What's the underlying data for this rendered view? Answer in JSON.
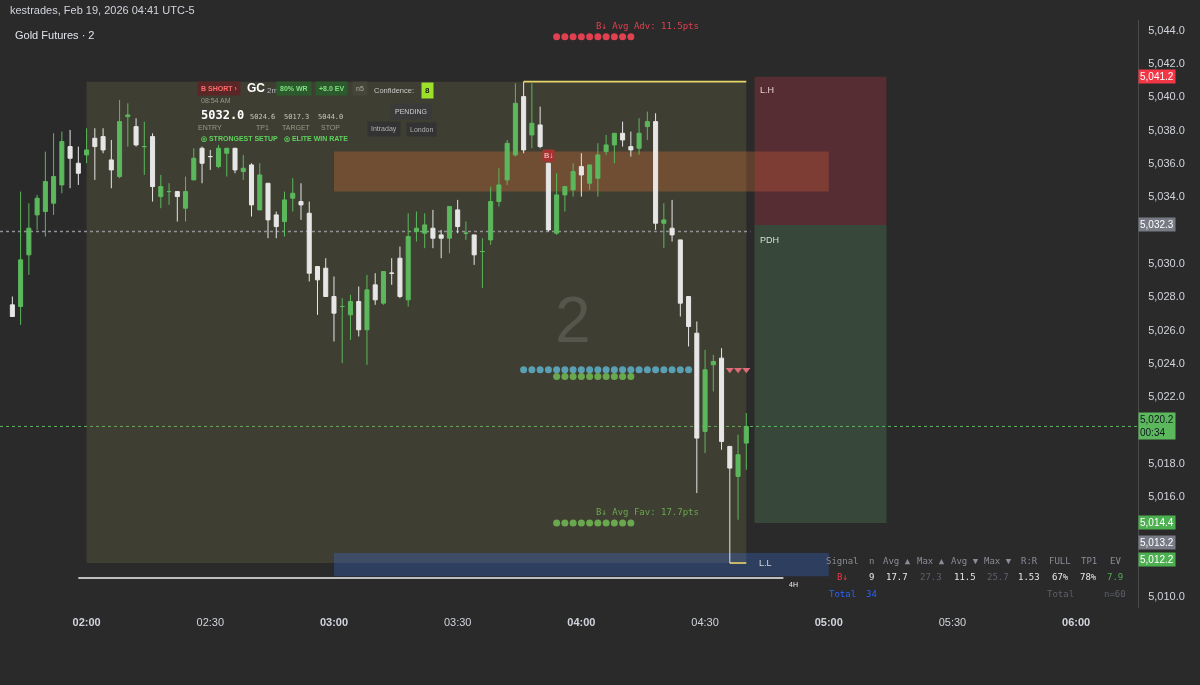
{
  "chart_data": {
    "type": "candlestick",
    "title": "Gold Futures · 2",
    "x": [
      "2026-02-19T01:42",
      "2026-02-19T01:44",
      "2026-02-19T01:46",
      "2026-02-19T01:48",
      "2026-02-19T01:50",
      "2026-02-19T01:52",
      "2026-02-19T01:54",
      "2026-02-19T01:56",
      "2026-02-19T01:58",
      "2026-02-19T02:00",
      "2026-02-19T02:02",
      "2026-02-19T02:04",
      "2026-02-19T02:06",
      "2026-02-19T02:08",
      "2026-02-19T02:10",
      "2026-02-19T02:12",
      "2026-02-19T02:14",
      "2026-02-19T02:16",
      "2026-02-19T02:18",
      "2026-02-19T02:20",
      "2026-02-19T02:22",
      "2026-02-19T02:24",
      "2026-02-19T02:26",
      "2026-02-19T02:28",
      "2026-02-19T02:30",
      "2026-02-19T02:32",
      "2026-02-19T02:34",
      "2026-02-19T02:36",
      "2026-02-19T02:38",
      "2026-02-19T02:40",
      "2026-02-19T02:42",
      "2026-02-19T02:44",
      "2026-02-19T02:46",
      "2026-02-19T02:48",
      "2026-02-19T02:50",
      "2026-02-19T02:52",
      "2026-02-19T02:54",
      "2026-02-19T02:56",
      "2026-02-19T02:58",
      "2026-02-19T03:00",
      "2026-02-19T03:02",
      "2026-02-19T03:04",
      "2026-02-19T03:06",
      "2026-02-19T03:08",
      "2026-02-19T03:10",
      "2026-02-19T03:12",
      "2026-02-19T03:14",
      "2026-02-19T03:16",
      "2026-02-19T03:18",
      "2026-02-19T03:20",
      "2026-02-19T03:22",
      "2026-02-19T03:24",
      "2026-02-19T03:26",
      "2026-02-19T03:28",
      "2026-02-19T03:30",
      "2026-02-19T03:32",
      "2026-02-19T03:34",
      "2026-02-19T03:36",
      "2026-02-19T03:38",
      "2026-02-19T03:40",
      "2026-02-19T03:42",
      "2026-02-19T03:44",
      "2026-02-19T03:46",
      "2026-02-19T03:48",
      "2026-02-19T03:50",
      "2026-02-19T03:52",
      "2026-02-19T03:54",
      "2026-02-19T03:56",
      "2026-02-19T03:58",
      "2026-02-19T04:00",
      "2026-02-19T04:02",
      "2026-02-19T04:04",
      "2026-02-19T04:06",
      "2026-02-19T04:08",
      "2026-02-19T04:10",
      "2026-02-19T04:12",
      "2026-02-19T04:14",
      "2026-02-19T04:16",
      "2026-02-19T04:18",
      "2026-02-19T04:20",
      "2026-02-19T04:22",
      "2026-02-19T04:24",
      "2026-02-19T04:26",
      "2026-02-19T04:28",
      "2026-02-19T04:30",
      "2026-02-19T04:32",
      "2026-02-19T04:34",
      "2026-02-19T04:36",
      "2026-02-19T04:38",
      "2026-02-19T04:40"
    ],
    "ohlc": [
      [
        5027.5,
        5028.0,
        5026.8,
        5026.8
      ],
      [
        5027.4,
        5034.3,
        5026.3,
        5030.2
      ],
      [
        5030.5,
        5033.6,
        5029.3,
        5032.1
      ],
      [
        5032.9,
        5034.1,
        5032.0,
        5033.9
      ],
      [
        5033.1,
        5036.7,
        5031.6,
        5034.9
      ],
      [
        5033.6,
        5037.8,
        5032.9,
        5035.2
      ],
      [
        5034.7,
        5037.9,
        5034.2,
        5037.3
      ],
      [
        5037.0,
        5038.0,
        5034.5,
        5036.3
      ],
      [
        5036.0,
        5037.0,
        5034.7,
        5035.4
      ],
      [
        5036.5,
        5038.1,
        5036.0,
        5036.8
      ],
      [
        5037.5,
        5038.1,
        5035.0,
        5037.0
      ],
      [
        5037.6,
        5038.1,
        5036.6,
        5036.8
      ],
      [
        5036.2,
        5037.4,
        5034.5,
        5035.6
      ],
      [
        5035.2,
        5039.8,
        5035.1,
        5038.5
      ],
      [
        5038.8,
        5039.6,
        5037.0,
        5038.9
      ],
      [
        5038.2,
        5038.7,
        5037.0,
        5037.1
      ],
      [
        5037.0,
        5038.5,
        5035.3,
        5037.0
      ],
      [
        5037.6,
        5037.8,
        5033.7,
        5034.6
      ],
      [
        5034.0,
        5035.3,
        5033.3,
        5034.6
      ],
      [
        5034.3,
        5034.8,
        5033.5,
        5034.3
      ],
      [
        5034.3,
        5034.3,
        5032.5,
        5034.0
      ],
      [
        5033.3,
        5035.2,
        5032.5,
        5034.3
      ],
      [
        5035.0,
        5036.9,
        5035.0,
        5036.3
      ],
      [
        5036.9,
        5037.0,
        5034.8,
        5036.0
      ],
      [
        5036.4,
        5036.8,
        5035.6,
        5036.4
      ],
      [
        5035.8,
        5037.1,
        5035.7,
        5036.9
      ],
      [
        5036.6,
        5036.9,
        5035.2,
        5036.9
      ],
      [
        5036.9,
        5036.9,
        5035.4,
        5035.6
      ],
      [
        5035.5,
        5036.5,
        5035.0,
        5035.7
      ],
      [
        5035.9,
        5036.0,
        5032.8,
        5033.5
      ],
      [
        5033.2,
        5036.0,
        5033.2,
        5035.3
      ],
      [
        5034.8,
        5034.8,
        5031.5,
        5032.6
      ],
      [
        5032.9,
        5033.1,
        5031.5,
        5032.2
      ],
      [
        5032.5,
        5034.3,
        5031.6,
        5033.8
      ],
      [
        5033.9,
        5035.1,
        5033.1,
        5034.2
      ],
      [
        5033.7,
        5034.8,
        5032.6,
        5033.5
      ],
      [
        5033.0,
        5033.7,
        5028.9,
        5029.4
      ],
      [
        5029.8,
        5029.8,
        5026.9,
        5029.0
      ],
      [
        5029.7,
        5030.3,
        5028.0,
        5028.0
      ],
      [
        5028.0,
        5029.2,
        5025.3,
        5027.0
      ],
      [
        5027.4,
        5027.9,
        5024.0,
        5027.4
      ],
      [
        5026.9,
        5028.1,
        5025.4,
        5027.7
      ],
      [
        5027.7,
        5028.6,
        5025.6,
        5026.0
      ],
      [
        5026.0,
        5029.3,
        5023.9,
        5028.4
      ],
      [
        5028.7,
        5029.4,
        5027.5,
        5027.8
      ],
      [
        5027.6,
        5029.5,
        5027.5,
        5029.5
      ],
      [
        5029.4,
        5030.3,
        5028.7,
        5029.4
      ],
      [
        5030.3,
        5031.0,
        5027.9,
        5028.0
      ],
      [
        5027.8,
        5033.0,
        5027.4,
        5031.6
      ],
      [
        5031.9,
        5033.1,
        5031.3,
        5032.1
      ],
      [
        5031.8,
        5033.0,
        5030.9,
        5032.3
      ],
      [
        5032.1,
        5033.2,
        5030.9,
        5031.5
      ],
      [
        5031.7,
        5032.0,
        5030.3,
        5031.5
      ],
      [
        5031.5,
        5033.4,
        5030.6,
        5033.4
      ],
      [
        5033.2,
        5033.8,
        5031.8,
        5032.2
      ],
      [
        5031.8,
        5032.5,
        5031.4,
        5031.8
      ],
      [
        5031.7,
        5031.7,
        5029.9,
        5030.5
      ],
      [
        5030.7,
        5031.5,
        5028.5,
        5030.7
      ],
      [
        5031.4,
        5034.6,
        5031.1,
        5033.7
      ],
      [
        5033.7,
        5035.7,
        5033.4,
        5034.7
      ],
      [
        5035.0,
        5037.4,
        5034.7,
        5037.2
      ],
      [
        5036.5,
        5040.8,
        5036.4,
        5039.6
      ],
      [
        5040.0,
        5040.9,
        5036.6,
        5036.8
      ],
      [
        5037.7,
        5040.8,
        5036.9,
        5038.4
      ],
      [
        5038.3,
        5039.4,
        5036.9,
        5037.0
      ],
      [
        5036.0,
        5036.0,
        5031.9,
        5032.0
      ],
      [
        5031.8,
        5035.4,
        5031.7,
        5034.1
      ],
      [
        5034.1,
        5034.6,
        5033.1,
        5034.6
      ],
      [
        5034.4,
        5036.0,
        5034.0,
        5035.5
      ],
      [
        5035.8,
        5036.6,
        5034.0,
        5035.3
      ],
      [
        5034.8,
        5035.9,
        5034.4,
        5035.9
      ],
      [
        5035.1,
        5037.2,
        5034.0,
        5036.5
      ],
      [
        5036.7,
        5037.7,
        5036.5,
        5037.1
      ],
      [
        5037.1,
        5037.8,
        5036.0,
        5037.8
      ],
      [
        5037.8,
        5038.5,
        5037.0,
        5037.4
      ],
      [
        5037.0,
        5037.9,
        5036.4,
        5036.8
      ],
      [
        5036.9,
        5038.7,
        5036.5,
        5037.8
      ],
      [
        5038.2,
        5039.1,
        5037.4,
        5038.5
      ],
      [
        5038.5,
        5039.0,
        5032.0,
        5032.4
      ],
      [
        5032.4,
        5033.6,
        5030.9,
        5032.6
      ],
      [
        5032.1,
        5033.8,
        5031.3,
        5031.7
      ],
      [
        5031.4,
        5031.4,
        5026.8,
        5027.6
      ],
      [
        5028.0,
        5028.0,
        5025.0,
        5026.2
      ],
      [
        5025.8,
        5026.5,
        5016.2,
        5019.5
      ],
      [
        5019.9,
        5024.8,
        5018.6,
        5023.6
      ],
      [
        5023.9,
        5024.5,
        5022.3,
        5024.1
      ],
      [
        5024.3,
        5024.9,
        5018.8,
        5019.3
      ],
      [
        5019.0,
        5019.0,
        5012.0,
        5017.7
      ],
      [
        5017.2,
        5019.7,
        5014.6,
        5018.5
      ],
      [
        5019.2,
        5021.0,
        5017.6,
        5020.2
      ]
    ],
    "colors": [
      "#e6e6e6",
      "#5cb85c",
      "#5cb85c",
      "#5cb85c",
      "#5cb85c",
      "#5cb85c",
      "#5cb85c",
      "#e6e6e6",
      "#e6e6e6",
      "#5cb85c",
      "#e6e6e6",
      "#e6e6e6",
      "#e6e6e6",
      "#5cb85c",
      "#5cb85c",
      "#e6e6e6",
      "#5cb85c",
      "#e6e6e6",
      "#5cb85c",
      "#5cb85c",
      "#e6e6e6",
      "#5cb85c",
      "#5cb85c",
      "#e6e6e6",
      "#e6e6e6",
      "#5cb85c",
      "#5cb85c",
      "#e6e6e6",
      "#5cb85c",
      "#e6e6e6",
      "#5cb85c",
      "#e6e6e6",
      "#e6e6e6",
      "#5cb85c",
      "#5cb85c",
      "#e6e6e6",
      "#e6e6e6",
      "#e6e6e6",
      "#e6e6e6",
      "#e6e6e6",
      "#5cb85c",
      "#5cb85c",
      "#e6e6e6",
      "#5cb85c",
      "#e6e6e6",
      "#5cb85c",
      "#e6e6e6",
      "#e6e6e6",
      "#5cb85c",
      "#5cb85c",
      "#5cb85c",
      "#e6e6e6",
      "#e6e6e6",
      "#5cb85c",
      "#e6e6e6",
      "#5cb85c",
      "#e6e6e6",
      "#5cb85c",
      "#5cb85c",
      "#5cb85c",
      "#5cb85c",
      "#5cb85c",
      "#e6e6e6",
      "#5cb85c",
      "#e6e6e6",
      "#e6e6e6",
      "#5cb85c",
      "#5cb85c",
      "#5cb85c",
      "#e6e6e6",
      "#5cb85c",
      "#5cb85c",
      "#5cb85c",
      "#5cb85c",
      "#e6e6e6",
      "#e6e6e6",
      "#5cb85c",
      "#5cb85c",
      "#e6e6e6",
      "#5cb85c",
      "#e6e6e6",
      "#e6e6e6",
      "#e6e6e6",
      "#e6e6e6",
      "#5cb85c",
      "#5cb85c",
      "#e6e6e6",
      "#e6e6e6",
      "#5cb85c",
      "#5cb85c"
    ],
    "xlim": [
      "2026-02-19T01:39",
      "2026-02-19T06:15"
    ],
    "xticks": [
      {
        "value": "2026-02-19T02:00",
        "label": "02:00"
      },
      {
        "value": "2026-02-19T02:30",
        "label": "02:30"
      },
      {
        "value": "2026-02-19T03:00",
        "label": "03:00"
      },
      {
        "value": "2026-02-19T03:30",
        "label": "03:30"
      },
      {
        "value": "2026-02-19T04:00",
        "label": "04:00"
      },
      {
        "value": "2026-02-19T04:30",
        "label": "04:30"
      },
      {
        "value": "2026-02-19T05:00",
        "label": "05:00"
      },
      {
        "value": "2026-02-19T05:30",
        "label": "05:30"
      },
      {
        "value": "2026-02-19T06:00",
        "label": "06:00"
      }
    ],
    "ylim": [
      5009.3,
      5044.6
    ],
    "yticks": [
      {
        "value": 5044,
        "label": "5,044.0"
      },
      {
        "value": 5042,
        "label": "5,042.0"
      },
      {
        "value": 5040,
        "label": "5,040.0"
      },
      {
        "value": 5038,
        "label": "5,038.0"
      },
      {
        "value": 5036,
        "label": "5,036.0"
      },
      {
        "value": 5034,
        "label": "5,034.0"
      },
      {
        "value": 5030,
        "label": "5,030.0"
      },
      {
        "value": 5028,
        "label": "5,028.0"
      },
      {
        "value": 5026,
        "label": "5,026.0"
      },
      {
        "value": 5024,
        "label": "5,024.0"
      },
      {
        "value": 5022,
        "label": "5,022.0"
      },
      {
        "value": 5018,
        "label": "5,018.0"
      },
      {
        "value": 5016,
        "label": "5,016.0"
      },
      {
        "value": 5010,
        "label": "5,010.0"
      }
    ],
    "series": [
      {
        "type": "line",
        "color": "#7e7a4a",
        "x": [
          "2026-02-19T02:00",
          "2026-02-19T04:40"
        ],
        "values": [
          null,
          null
        ],
        "lower": [
          5012.0,
          5012.0
        ],
        "upper": [
          5040.9,
          5040.9
        ]
      },
      {
        "type": "line",
        "color": "#fe7e36",
        "x": [
          "2026-02-19T03:00",
          "2026-02-19T05:00"
        ],
        "values": [
          null,
          null
        ],
        "lower": [
          5034.3,
          5034.3
        ],
        "upper": [
          5036.7,
          5036.7
        ]
      },
      {
        "type": "line",
        "color": "#3d7cff",
        "x": [
          "2026-02-19T03:00",
          "2026-02-19T05:00"
        ],
        "values": [
          null,
          null
        ],
        "lower": [
          5011.2,
          5011.2
        ],
        "upper": [
          5012.6,
          5012.6
        ]
      },
      {
        "type": "line",
        "color": "#d6364a",
        "x": [
          "2026-02-19T04:42",
          "2026-02-19T05:14"
        ],
        "values": [
          null,
          null
        ],
        "lower": [
          5032.3,
          5032.3
        ],
        "upper": [
          5041.2,
          5041.2
        ]
      },
      {
        "type": "line",
        "color": "#5ea26a",
        "x": [
          "2026-02-19T04:42",
          "2026-02-19T05:14"
        ],
        "values": [
          null,
          null
        ],
        "lower": [
          5014.4,
          5014.4
        ],
        "upper": [
          5032.3,
          5032.3
        ]
      },
      {
        "type": "line",
        "color": "#e8d56a",
        "x": [
          "2026-02-19T03:46",
          "2026-02-19T04:40"
        ],
        "values": [
          5040.9,
          5040.9
        ]
      },
      {
        "type": "line",
        "color": "#e8d56a",
        "x": [
          "2026-02-19T04:36",
          "2026-02-19T04:40"
        ],
        "values": [
          5012.0,
          5012.0
        ]
      },
      {
        "type": "line",
        "color": "#8f9196",
        "line_style": "dotted",
        "x": [
          "2026-02-19T01:39",
          "2026-02-19T04:41"
        ],
        "values": [
          5031.9,
          5031.9
        ]
      },
      {
        "type": "line",
        "name": "4H",
        "color": "#f0f0f0",
        "x": [
          "2026-02-19T01:58",
          "2026-02-19T04:49"
        ],
        "values": [
          5011.1,
          5011.1
        ]
      },
      {
        "type": "scatter",
        "marker": "circle",
        "color": "#5aa0b4",
        "x": [
          "2026-02-19T03:46",
          "2026-02-19T03:48",
          "2026-02-19T03:50",
          "2026-02-19T03:52",
          "2026-02-19T03:54",
          "2026-02-19T03:56",
          "2026-02-19T03:58",
          "2026-02-19T04:00",
          "2026-02-19T04:02",
          "2026-02-19T04:04",
          "2026-02-19T04:06",
          "2026-02-19T04:08",
          "2026-02-19T04:10",
          "2026-02-19T04:12",
          "2026-02-19T04:14",
          "2026-02-19T04:16",
          "2026-02-19T04:18",
          "2026-02-19T04:20",
          "2026-02-19T04:22",
          "2026-02-19T04:24",
          "2026-02-19T04:26"
        ],
        "values": [
          5023.6,
          5023.6,
          5023.6,
          5023.6,
          5023.6,
          5023.6,
          5023.6,
          5023.6,
          5023.6,
          5023.6,
          5023.6,
          5023.6,
          5023.6,
          5023.6,
          5023.6,
          5023.6,
          5023.6,
          5023.6,
          5023.6,
          5023.6,
          5023.6
        ]
      },
      {
        "type": "scatter",
        "marker": "circle",
        "color": "#6aa84f",
        "x": [
          "2026-02-19T03:54",
          "2026-02-19T03:56",
          "2026-02-19T03:58",
          "2026-02-19T04:00",
          "2026-02-19T04:02",
          "2026-02-19T04:04",
          "2026-02-19T04:06",
          "2026-02-19T04:08",
          "2026-02-19T04:10",
          "2026-02-19T04:12"
        ],
        "values": [
          5023.2,
          5023.2,
          5023.2,
          5023.2,
          5023.2,
          5023.2,
          5023.2,
          5023.2,
          5023.2,
          5023.2
        ]
      },
      {
        "type": "scatter",
        "marker": "triangle",
        "color": "#e06c7a",
        "x": [
          "2026-02-19T04:36",
          "2026-02-19T04:38",
          "2026-02-19T04:40"
        ],
        "values": [
          5023.6,
          5023.6,
          5023.6
        ]
      },
      {
        "type": "scatter",
        "marker": "circle",
        "color": "#e04050",
        "x": [
          "2026-02-19T03:54",
          "2026-02-19T03:56",
          "2026-02-19T03:58",
          "2026-02-19T04:00",
          "2026-02-19T04:02",
          "2026-02-19T04:04",
          "2026-02-19T04:06",
          "2026-02-19T04:08",
          "2026-02-19T04:10",
          "2026-02-19T04:12"
        ],
        "values": [
          5043.6,
          5043.6,
          5043.6,
          5043.6,
          5043.6,
          5043.6,
          5043.6,
          5043.6,
          5043.6,
          5043.6
        ]
      },
      {
        "type": "scatter",
        "marker": "circle",
        "color": "#6aa84f",
        "x": [
          "2026-02-19T03:54",
          "2026-02-19T03:56",
          "2026-02-19T03:58",
          "2026-02-19T04:00",
          "2026-02-19T04:02",
          "2026-02-19T04:04",
          "2026-02-19T04:06",
          "2026-02-19T04:08",
          "2026-02-19T04:10",
          "2026-02-19T04:12"
        ],
        "values": [
          5014.4,
          5014.4,
          5014.4,
          5014.4,
          5014.4,
          5014.4,
          5014.4,
          5014.4,
          5014.4,
          5014.4
        ]
      }
    ],
    "ref_lines": [
      {
        "axis": "y",
        "value": 5020.2,
        "label": "5,020.2\n00:34",
        "color": "#5cb85c",
        "line_style": "dotted"
      }
    ],
    "annotations": [
      "kestrades, Feb 19, 2026 04:41 UTC-5",
      "2",
      "B SHORT ›",
      "GC",
      "2m",
      "80% WR",
      "+8.0 EV",
      "n5",
      "08:54 AM",
      "5032.0",
      "ENTRY",
      "5024.6",
      "TP1",
      "5017.3",
      "TARGET",
      "5044.0",
      "STOP",
      "◎ STRONGEST SETUP",
      "◎ ELITE WIN RATE",
      "Confidence:",
      "8",
      "PENDING",
      "Intraday",
      "London",
      "Signal",
      "n",
      "Avg ▲",
      "Max ▲",
      "Avg ▼",
      "Max ▼",
      "R:R",
      "FULL",
      "TP1",
      "EV",
      "B↓",
      "9",
      "17.7",
      "27.3",
      "11.5",
      "25.7",
      "1.53",
      "67%",
      "78%",
      "7.9",
      "Total",
      "34",
      "Total",
      "n=60",
      {
        "text": "B↓ Avg Adv: 11.5pts",
        "x": "2026-02-19T04:03",
        "y": 5043.6
      },
      {
        "text": "B↓ Avg Fav: 17.7pts",
        "x": "2026-02-19T04:03",
        "y": 5014.4
      },
      {
        "text": "B↓",
        "x": "2026-02-19T03:52",
        "y": 5036.0
      },
      {
        "text": "L.H",
        "x": "2026-02-19T04:42",
        "y": 5040.9
      },
      {
        "text": "PDH",
        "x": "2026-02-19T04:42",
        "y": 5031.9
      },
      {
        "text": "L.L",
        "x": "2026-02-19T04:40",
        "y": 5012.0
      },
      "5,041.2",
      "5,032.3",
      "5,014.4",
      "5,013.2",
      "5,012.2"
    ]
  }
}
